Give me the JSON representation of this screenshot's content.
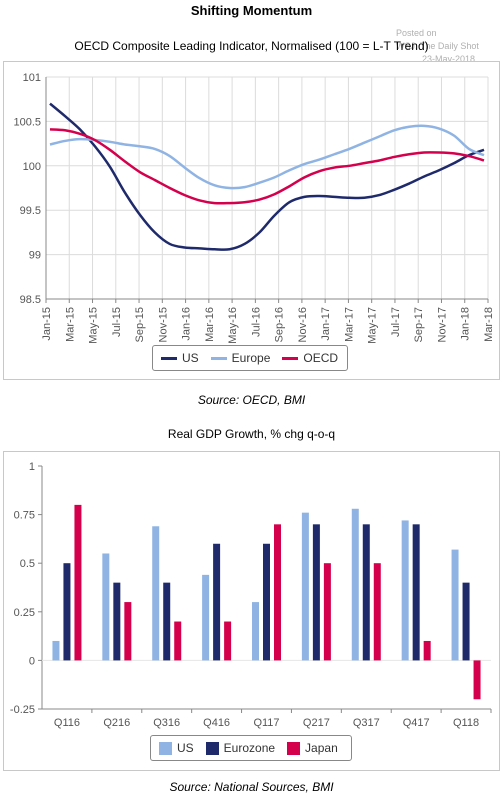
{
  "page": {
    "main_title": "Shifting Momentum",
    "stamp": {
      "line1": "Posted on",
      "line2": "WSJ: The Daily Shot",
      "line3": "23-May-2018"
    },
    "source1": "Source: OECD, BMI",
    "source2": "Source: National Sources, BMI"
  },
  "chart_data": [
    {
      "type": "line",
      "title": "OECD Composite Leading Indicator, Normalised (100 = L-T Trend)",
      "xlabel": "",
      "ylabel": "",
      "ylim": [
        98.5,
        101
      ],
      "yticks": [
        "98.5",
        "99",
        "99.5",
        "100",
        "100.5",
        "101"
      ],
      "ytick_values": [
        98.5,
        99,
        99.5,
        100,
        100.5,
        101
      ],
      "x_labels": [
        "Jan-15",
        "Mar-15",
        "May-15",
        "Jul-15",
        "Sep-15",
        "Nov-15",
        "Jan-16",
        "Mar-16",
        "May-16",
        "Jul-16",
        "Sep-16",
        "Nov-16",
        "Jan-17",
        "Mar-17",
        "May-17",
        "Jul-17",
        "Sep-17",
        "Nov-17",
        "Jan-18",
        "Mar-18"
      ],
      "grid": true,
      "legend": "bottom",
      "series": [
        {
          "name": "US",
          "color": "#1f2a6b",
          "values": [
            100.7,
            100.56,
            100.41,
            100.22,
            99.99,
            99.7,
            99.45,
            99.25,
            99.12,
            99.08,
            99.07,
            99.06,
            99.06,
            99.12,
            99.25,
            99.44,
            99.59,
            99.65,
            99.66,
            99.65,
            99.64,
            99.64,
            99.67,
            99.73,
            99.8,
            99.88,
            99.95,
            100.03,
            100.12,
            100.18
          ]
        },
        {
          "name": "Europe",
          "color": "#8fb4e3",
          "values": [
            100.24,
            100.28,
            100.3,
            100.29,
            100.27,
            100.24,
            100.22,
            100.19,
            100.11,
            99.98,
            99.86,
            99.78,
            99.75,
            99.76,
            99.81,
            99.87,
            99.95,
            100.02,
            100.07,
            100.13,
            100.19,
            100.26,
            100.33,
            100.4,
            100.44,
            100.45,
            100.42,
            100.34,
            100.19,
            100.12
          ]
        },
        {
          "name": "OECD",
          "color": "#d4004c",
          "values": [
            100.41,
            100.4,
            100.36,
            100.29,
            100.18,
            100.05,
            99.93,
            99.84,
            99.75,
            99.67,
            99.61,
            99.58,
            99.58,
            99.59,
            99.62,
            99.68,
            99.77,
            99.87,
            99.94,
            99.98,
            100.0,
            100.03,
            100.06,
            100.1,
            100.13,
            100.15,
            100.15,
            100.14,
            100.11,
            100.06
          ]
        }
      ]
    },
    {
      "type": "bar",
      "title": "Real GDP Growth, % chg q-o-q",
      "xlabel": "",
      "ylabel": "",
      "ylim": [
        -0.25,
        1
      ],
      "yticks": [
        "-0.25",
        "0",
        "0.25",
        "0.5",
        "0.75",
        "1"
      ],
      "ytick_values": [
        -0.25,
        0,
        0.25,
        0.5,
        0.75,
        1
      ],
      "categories": [
        "Q116",
        "Q216",
        "Q316",
        "Q416",
        "Q117",
        "Q217",
        "Q317",
        "Q417",
        "Q118"
      ],
      "grid": false,
      "legend": "bottom",
      "series": [
        {
          "name": "US",
          "color": "#8fb4e3",
          "values": [
            0.1,
            0.55,
            0.69,
            0.44,
            0.3,
            0.76,
            0.78,
            0.72,
            0.57
          ]
        },
        {
          "name": "Eurozone",
          "color": "#1f2a6b",
          "values": [
            0.5,
            0.4,
            0.4,
            0.6,
            0.6,
            0.7,
            0.7,
            0.7,
            0.4
          ]
        },
        {
          "name": "Japan",
          "color": "#d4004c",
          "values": [
            0.8,
            0.3,
            0.2,
            0.2,
            0.7,
            0.5,
            0.5,
            0.1,
            -0.2
          ]
        }
      ]
    }
  ]
}
